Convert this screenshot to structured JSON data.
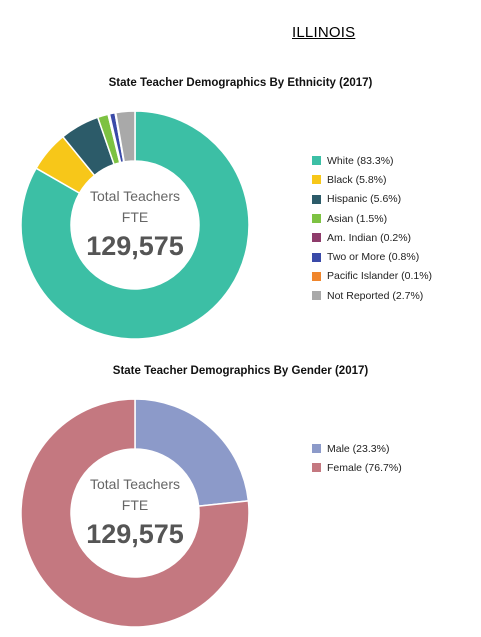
{
  "page": {
    "state": "ILLINOIS"
  },
  "chart_data": [
    {
      "type": "pie",
      "id": "ethnicity",
      "title": "State Teacher Demographics By Ethnicity (2017)",
      "center": {
        "line1": "Total Teachers",
        "line2": "FTE",
        "total": "129,575"
      },
      "legend_position": "right",
      "series": [
        {
          "name": "White",
          "label": "White (83.3%)",
          "value": 83.3,
          "color": "#3cbfa5"
        },
        {
          "name": "Black",
          "label": "Black (5.8%)",
          "value": 5.8,
          "color": "#f7c719"
        },
        {
          "name": "Hispanic",
          "label": "Hispanic (5.6%)",
          "value": 5.6,
          "color": "#2c5b69"
        },
        {
          "name": "Asian",
          "label": "Asian (1.5%)",
          "value": 1.5,
          "color": "#7dc242"
        },
        {
          "name": "Am. Indian",
          "label": "Am. Indian (0.2%)",
          "value": 0.2,
          "color": "#8e3c6b"
        },
        {
          "name": "Two or More",
          "label": "Two or More (0.8%)",
          "value": 0.8,
          "color": "#3a4aa8"
        },
        {
          "name": "Pacific Islander",
          "label": "Pacific Islander (0.1%)",
          "value": 0.1,
          "color": "#f0862c"
        },
        {
          "name": "Not Reported",
          "label": "Not Reported (2.7%)",
          "value": 2.7,
          "color": "#a9a9a9"
        }
      ]
    },
    {
      "type": "pie",
      "id": "gender",
      "title": "State Teacher Demographics By Gender (2017)",
      "center": {
        "line1": "Total Teachers",
        "line2": "FTE",
        "total": "129,575"
      },
      "legend_position": "right",
      "series": [
        {
          "name": "Male",
          "label": "Male (23.3%)",
          "value": 23.3,
          "color": "#8c9ac9"
        },
        {
          "name": "Female",
          "label": "Female (76.7%)",
          "value": 76.7,
          "color": "#c47880"
        }
      ]
    }
  ]
}
